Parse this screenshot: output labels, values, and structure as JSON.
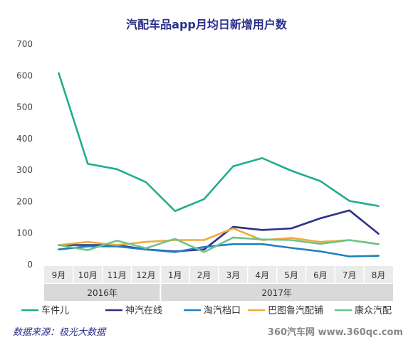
{
  "chart_data": {
    "type": "line",
    "title": "汽配车品app月均日新增用户数",
    "categories": [
      "9月",
      "10月",
      "11月",
      "12月",
      "1月",
      "2月",
      "3月",
      "4月",
      "5月",
      "6月",
      "7月",
      "8月"
    ],
    "year_groups": [
      {
        "label": "2016年",
        "start": 0,
        "end": 3
      },
      {
        "label": "2017年",
        "start": 4,
        "end": 11
      }
    ],
    "ylim": [
      0,
      700
    ],
    "yticks": [
      0,
      100,
      200,
      300,
      400,
      500,
      600,
      700
    ],
    "grid": false,
    "legend_position": "bottom",
    "series": [
      {
        "name": "车件儿",
        "color": "#1fae8e",
        "values": [
          608,
          320,
          303,
          262,
          170,
          208,
          312,
          338,
          298,
          265,
          202,
          186
        ]
      },
      {
        "name": "神汽在线",
        "color": "#2e2f86",
        "values": [
          62,
          62,
          62,
          48,
          42,
          48,
          120,
          110,
          115,
          147,
          172,
          98
        ]
      },
      {
        "name": "淘汽档口",
        "color": "#1f7fc0",
        "values": [
          48,
          58,
          58,
          48,
          40,
          56,
          65,
          65,
          53,
          42,
          26,
          28
        ]
      },
      {
        "name": "巴图鲁汽配铺",
        "color": "#f2a93b",
        "values": [
          62,
          72,
          62,
          72,
          78,
          78,
          115,
          78,
          85,
          72,
          78,
          65
        ]
      },
      {
        "name": "康众汽配",
        "color": "#6cc48d",
        "values": [
          62,
          46,
          76,
          52,
          82,
          40,
          86,
          80,
          78,
          66,
          78,
          65
        ]
      }
    ]
  },
  "footer": {
    "source": "数据来源：极光大数据",
    "brand": "360汽车网 www.360qc.com"
  }
}
